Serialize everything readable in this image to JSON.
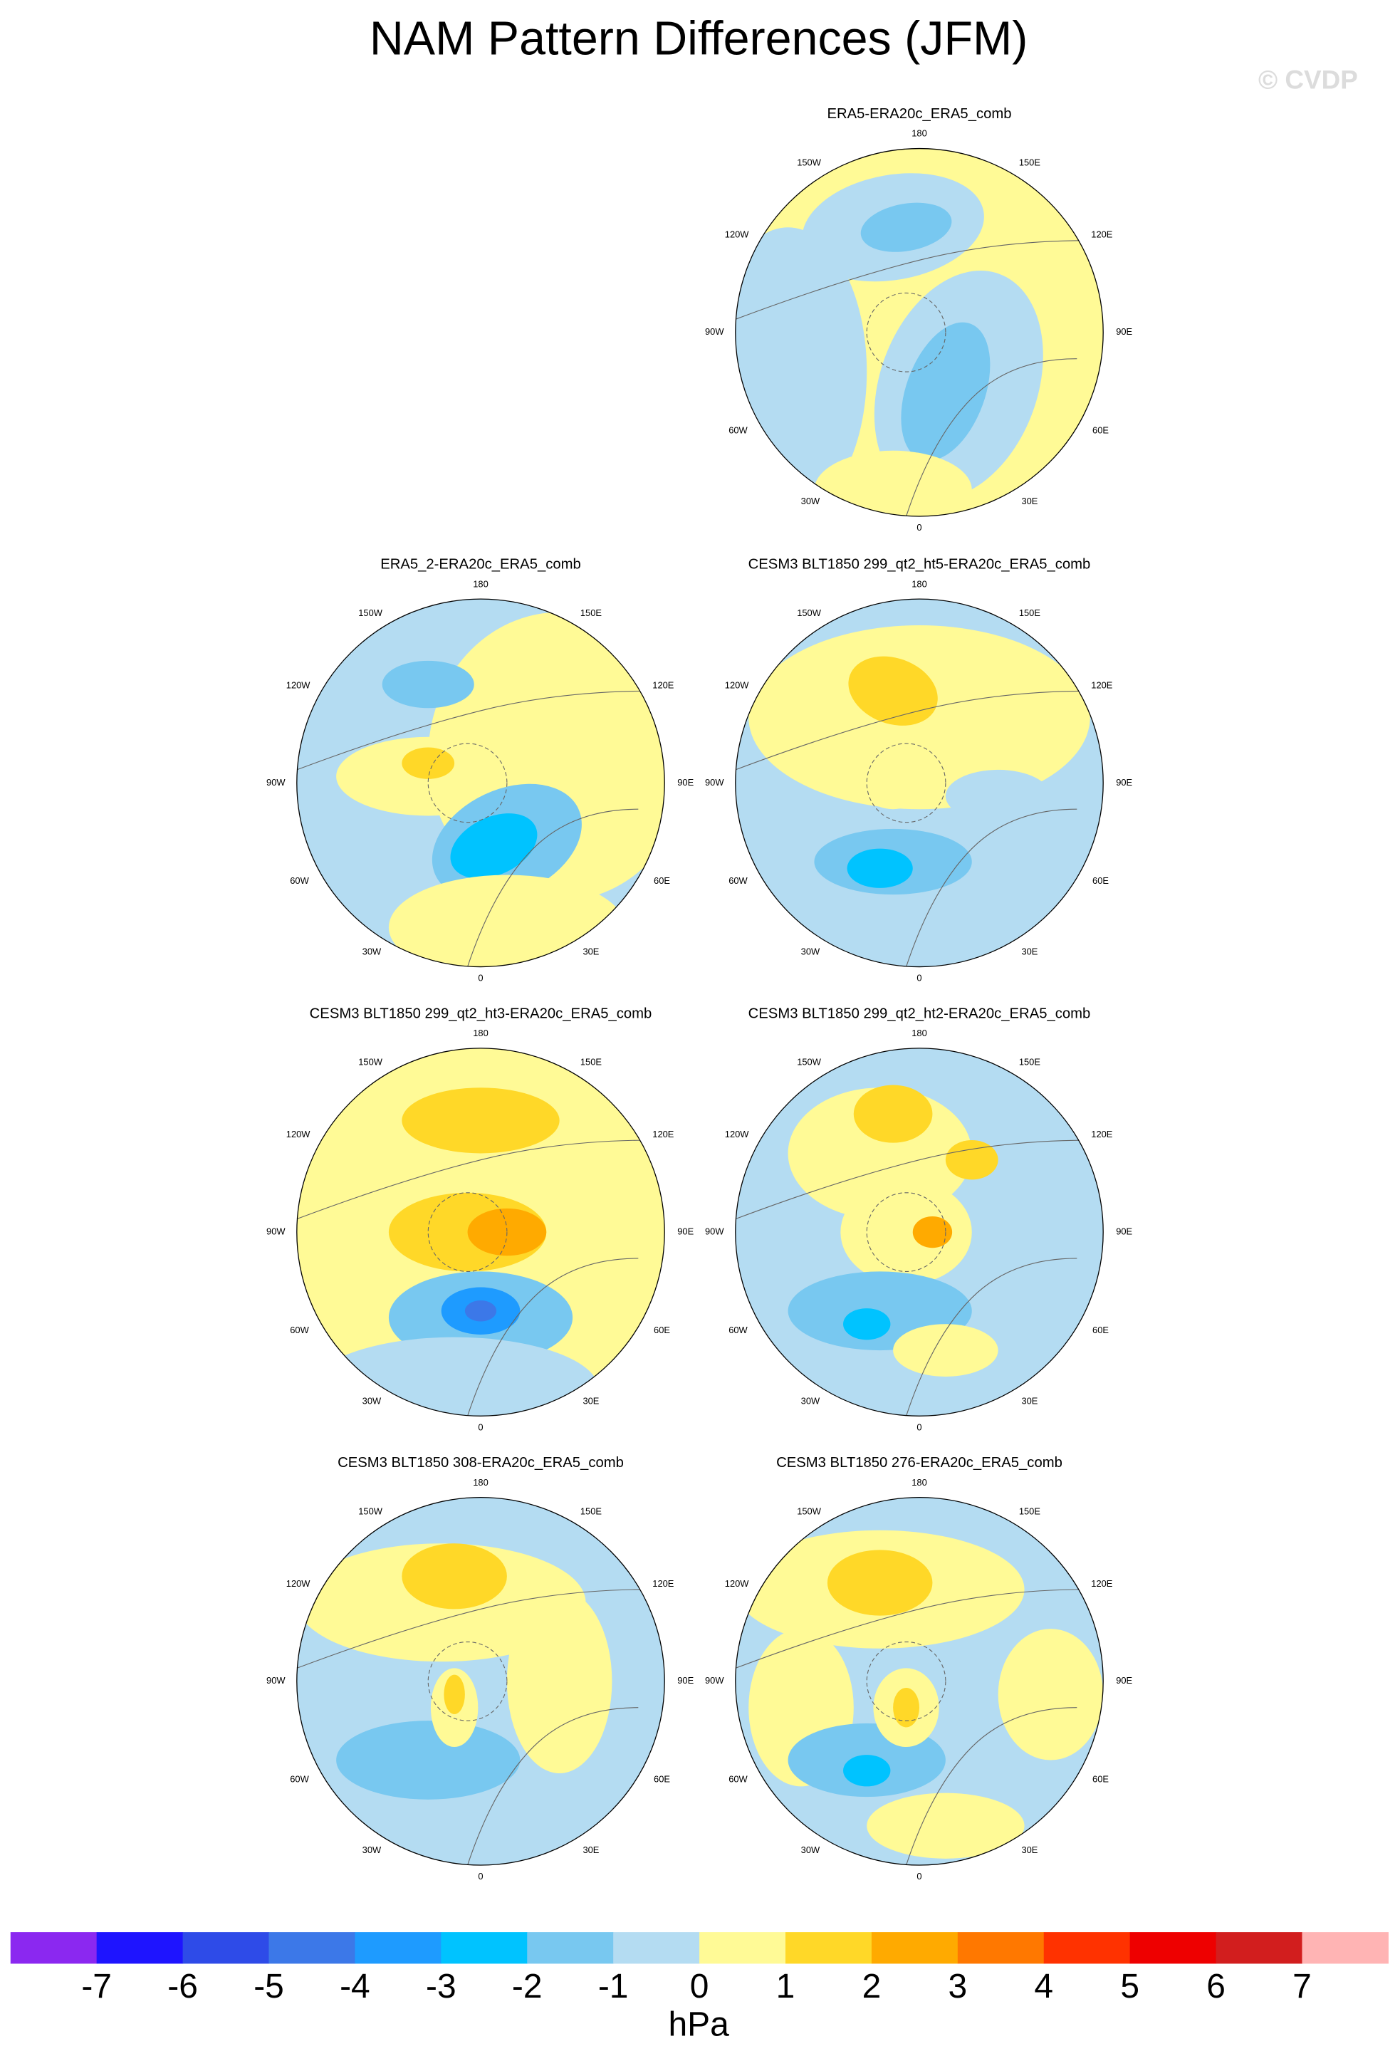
{
  "title": "NAM Pattern Differences (JFM)",
  "watermark": "© CVDP",
  "longitude_labels": [
    "180",
    "150E",
    "120E",
    "90E",
    "60E",
    "30E",
    "0",
    "30W",
    "60W",
    "90W",
    "120W",
    "150W"
  ],
  "panels": [
    {
      "title": "ERA5-ERA20c_ERA5_comb"
    },
    {
      "title": "ERA5_2-ERA20c_ERA5_comb"
    },
    {
      "title": "CESM3 BLT1850 299_qt2_ht5-ERA20c_ERA5_comb"
    },
    {
      "title": "CESM3 BLT1850 299_qt2_ht3-ERA20c_ERA5_comb"
    },
    {
      "title": "CESM3 BLT1850 299_qt2_ht2-ERA20c_ERA5_comb"
    },
    {
      "title": "CESM3 BLT1850 308-ERA20c_ERA5_comb"
    },
    {
      "title": "CESM3 BLT1850 276-ERA20c_ERA5_comb"
    }
  ],
  "colorbar": {
    "colors": [
      "#8b28f0",
      "#1e14ff",
      "#2e4be8",
      "#3c78e8",
      "#1e9bff",
      "#00c3ff",
      "#78c8f0",
      "#b4dcf2",
      "#fffa96",
      "#ffd828",
      "#ffaa00",
      "#ff7800",
      "#ff3200",
      "#ee0000",
      "#d21e1e",
      "#ffb4b4"
    ],
    "levels": [
      -7,
      -6,
      -5,
      -4,
      -3,
      -2,
      -1,
      0,
      1,
      2,
      3,
      4,
      5,
      6,
      7
    ],
    "unit": "hPa"
  }
}
